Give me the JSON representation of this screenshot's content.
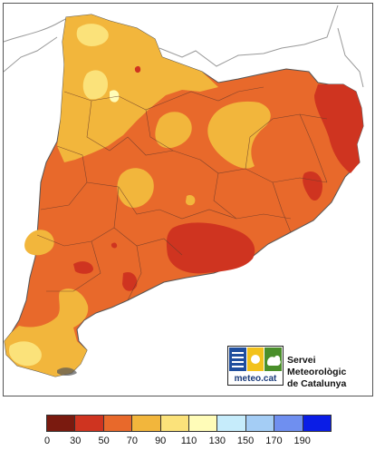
{
  "logo": {
    "text": "meteo.cat",
    "colors": {
      "blue": "#1f4e9e",
      "yellow": "#f2c21b",
      "green": "#4a8f2a"
    }
  },
  "organization": {
    "line1": "Servei Meteorològic",
    "line2": "de Catalunya"
  },
  "legend": {
    "bins": [
      {
        "from": "0",
        "color": "#7a1a0f"
      },
      {
        "from": "30",
        "color": "#cf3420"
      },
      {
        "from": "50",
        "color": "#e8692b"
      },
      {
        "from": "70",
        "color": "#f2b63c"
      },
      {
        "from": "90",
        "color": "#fbe27a"
      },
      {
        "from": "110",
        "color": "#fffcb8"
      },
      {
        "from": "130",
        "color": "#c6ecfb"
      },
      {
        "from": "150",
        "color": "#a4cdf5"
      },
      {
        "from": "170",
        "color": "#6f8ff0"
      },
      {
        "from": "190",
        "color": "#0a1de6"
      }
    ]
  }
}
